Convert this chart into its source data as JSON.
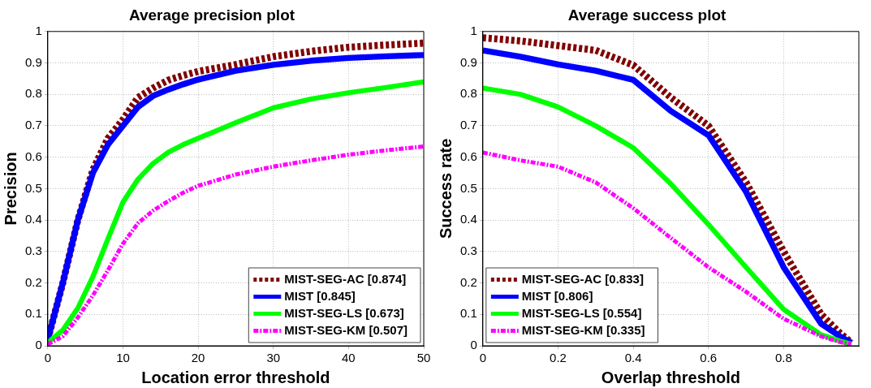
{
  "chart_data": [
    {
      "type": "line",
      "title": "Average precision plot",
      "xlabel": "Location error threshold",
      "ylabel": "Precision",
      "xlim": [
        0,
        50
      ],
      "xticks": [
        0,
        10,
        20,
        30,
        40,
        50
      ],
      "ylim": [
        0,
        1
      ],
      "yticks": [
        0,
        0.1,
        0.2,
        0.3,
        0.4,
        0.5,
        0.6,
        0.7,
        0.8,
        0.9,
        1
      ],
      "grid": true,
      "legend": "bottom right",
      "x": [
        0,
        2,
        4,
        6,
        8,
        10,
        12,
        14,
        16,
        18,
        20,
        25,
        30,
        35,
        40,
        45,
        50
      ],
      "series": [
        {
          "name": "MIST-SEG-AC [0.874]",
          "color": "#800000",
          "line_style": "dotted",
          "values": [
            0.02,
            0.2,
            0.4,
            0.56,
            0.66,
            0.72,
            0.79,
            0.82,
            0.845,
            0.86,
            0.873,
            0.895,
            0.92,
            0.937,
            0.95,
            0.957,
            0.963
          ]
        },
        {
          "name": "MIST [0.845]",
          "color": "#0000ff",
          "line_style": "solid",
          "values": [
            0.02,
            0.2,
            0.4,
            0.55,
            0.64,
            0.7,
            0.76,
            0.795,
            0.815,
            0.832,
            0.847,
            0.875,
            0.894,
            0.907,
            0.916,
            0.921,
            0.925
          ]
        },
        {
          "name": "MIST-SEG-LS [0.673]",
          "color": "#00ff00",
          "line_style": "solid",
          "values": [
            0.01,
            0.05,
            0.12,
            0.22,
            0.34,
            0.457,
            0.53,
            0.58,
            0.615,
            0.64,
            0.66,
            0.71,
            0.757,
            0.785,
            0.805,
            0.822,
            0.84
          ]
        },
        {
          "name": "MIST-SEG-KM [0.507]",
          "color": "#ff00ff",
          "line_style": "dashed",
          "values": [
            0.005,
            0.03,
            0.09,
            0.16,
            0.24,
            0.325,
            0.39,
            0.43,
            0.46,
            0.487,
            0.509,
            0.545,
            0.57,
            0.59,
            0.608,
            0.622,
            0.634
          ]
        }
      ]
    },
    {
      "type": "line",
      "title": "Average success plot",
      "xlabel": "Overlap threshold",
      "ylabel": "Success rate",
      "xlim": [
        0,
        1
      ],
      "xticks": [
        0,
        0.2,
        0.4,
        0.6,
        0.8
      ],
      "ylim": [
        0,
        1
      ],
      "yticks": [
        0,
        0.1,
        0.2,
        0.3,
        0.4,
        0.5,
        0.6,
        0.7,
        0.8,
        0.9,
        1
      ],
      "grid": true,
      "legend": "bottom left",
      "x": [
        0,
        0.1,
        0.2,
        0.3,
        0.4,
        0.5,
        0.6,
        0.7,
        0.8,
        0.9,
        0.95,
        0.98
      ],
      "series": [
        {
          "name": "MIST-SEG-AC [0.833]",
          "color": "#800000",
          "line_style": "dotted",
          "values": [
            0.98,
            0.97,
            0.955,
            0.94,
            0.893,
            0.79,
            0.7,
            0.52,
            0.3,
            0.1,
            0.04,
            0.01
          ]
        },
        {
          "name": "MIST [0.806]",
          "color": "#0000ff",
          "line_style": "solid",
          "values": [
            0.94,
            0.92,
            0.895,
            0.875,
            0.846,
            0.747,
            0.67,
            0.49,
            0.25,
            0.07,
            0.03,
            0.01
          ]
        },
        {
          "name": "MIST-SEG-LS [0.554]",
          "color": "#00ff00",
          "line_style": "solid",
          "values": [
            0.82,
            0.8,
            0.76,
            0.7,
            0.63,
            0.515,
            0.386,
            0.25,
            0.116,
            0.035,
            0.015,
            0.005
          ]
        },
        {
          "name": "MIST-SEG-KM [0.335]",
          "color": "#ff00ff",
          "line_style": "dashed",
          "values": [
            0.615,
            0.59,
            0.57,
            0.52,
            0.438,
            0.343,
            0.25,
            0.172,
            0.086,
            0.03,
            0.012,
            0.005
          ]
        }
      ]
    }
  ]
}
